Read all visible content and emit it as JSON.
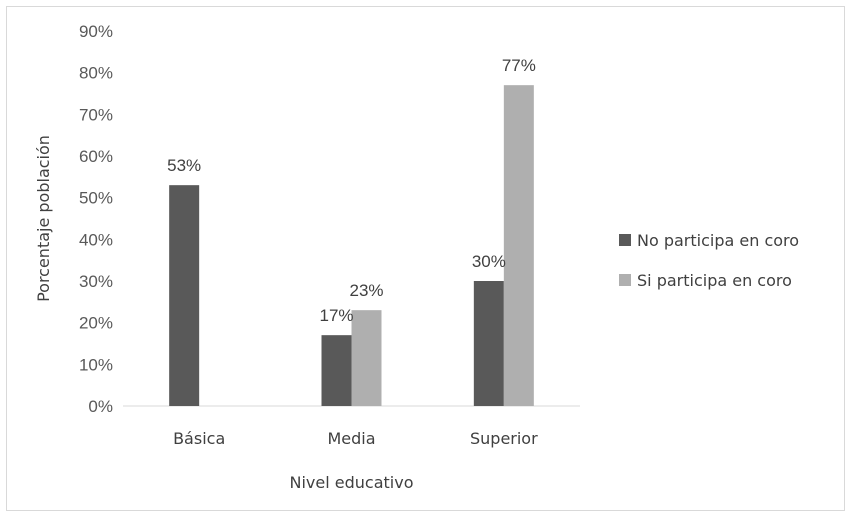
{
  "chart_data": {
    "type": "bar",
    "categories": [
      "Básica",
      "Media",
      "Superior"
    ],
    "series": [
      {
        "name": "No participa en coro",
        "values": [
          53,
          17,
          30
        ],
        "labels": [
          "53%",
          "17%",
          "30%"
        ],
        "color": "#595959"
      },
      {
        "name": "Si participa en coro",
        "values": [
          null,
          23,
          77
        ],
        "labels": [
          "",
          "23%",
          "77%"
        ],
        "color": "#afafaf"
      }
    ],
    "ylim": [
      0,
      90
    ],
    "ytick_labels": [
      "0%",
      "10%",
      "20%",
      "30%",
      "40%",
      "50%",
      "60%",
      "70%",
      "80%",
      "90%"
    ],
    "xlabel": "Nivel educativo",
    "ylabel": "Porcentaje población",
    "legend_position": "right",
    "grid": false
  }
}
